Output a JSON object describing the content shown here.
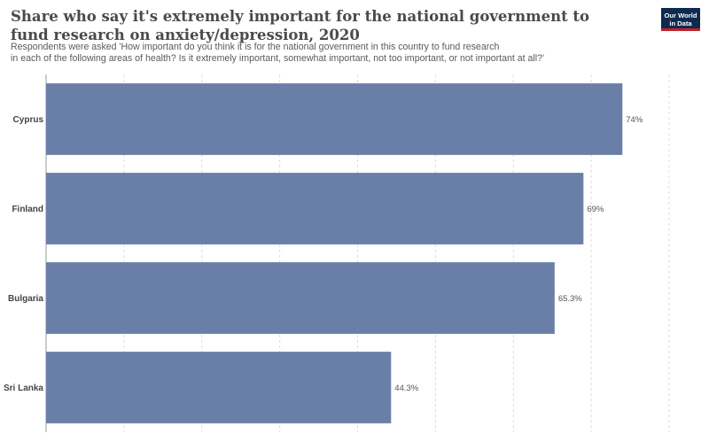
{
  "header": {
    "title": "Share who say it's extremely important for the national government to fund research on anxiety/depression, 2020",
    "subtitle_line1": "Respondents were asked 'How important do you think it is for the national government in this country to fund research",
    "subtitle_line2": "in each of the following areas of health? Is it extremely important, somewhat important, not too important, or not important at all?'"
  },
  "logo": {
    "line1": "Our World",
    "line2": "in Data"
  },
  "colors": {
    "bar": "#6a7fa8",
    "grid": "#dcdcdc",
    "axis": "#999999"
  },
  "chart_data": {
    "type": "bar",
    "orientation": "horizontal",
    "title": "Share who say it's extremely important for the national government to fund research on anxiety/depression, 2020",
    "categories": [
      "Cyprus",
      "Finland",
      "Bulgaria",
      "Sri Lanka"
    ],
    "values": [
      74,
      69,
      65.3,
      44.3
    ],
    "value_labels": [
      "74%",
      "69%",
      "65.3%",
      "44.3%"
    ],
    "unit": "%",
    "xlim": [
      0,
      80
    ],
    "grid": true,
    "legend": "none"
  }
}
